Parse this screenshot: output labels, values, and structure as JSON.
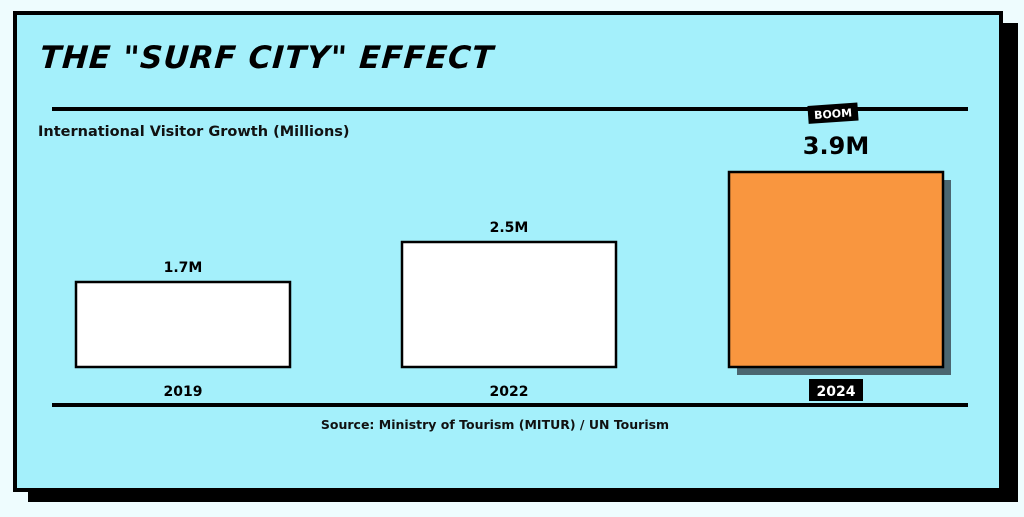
{
  "title": "THE \"SURF CITY\" EFFECT",
  "subtitle": "International Visitor Growth (Millions)",
  "source": "Source: Ministry of Tourism (MITUR) / UN Tourism",
  "colors": {
    "background": "#a4f0fb",
    "bar_default": "#ffffff",
    "bar_highlight": "#f9963f",
    "ink": "#000000",
    "shadow": "#4b6670"
  },
  "chart_data": {
    "type": "bar",
    "title": "THE \"SURF CITY\" EFFECT",
    "subtitle": "International Visitor Growth (Millions)",
    "categories": [
      "2019",
      "2022",
      "2024"
    ],
    "values": [
      1.7,
      2.5,
      3.9
    ],
    "value_labels": [
      "1.7M",
      "2.5M",
      "3.9M"
    ],
    "unit": "Millions",
    "highlight_index": 2,
    "highlight_badge": "BOOM",
    "xlabel": "",
    "ylabel": "",
    "grid": false,
    "legend": "none"
  }
}
